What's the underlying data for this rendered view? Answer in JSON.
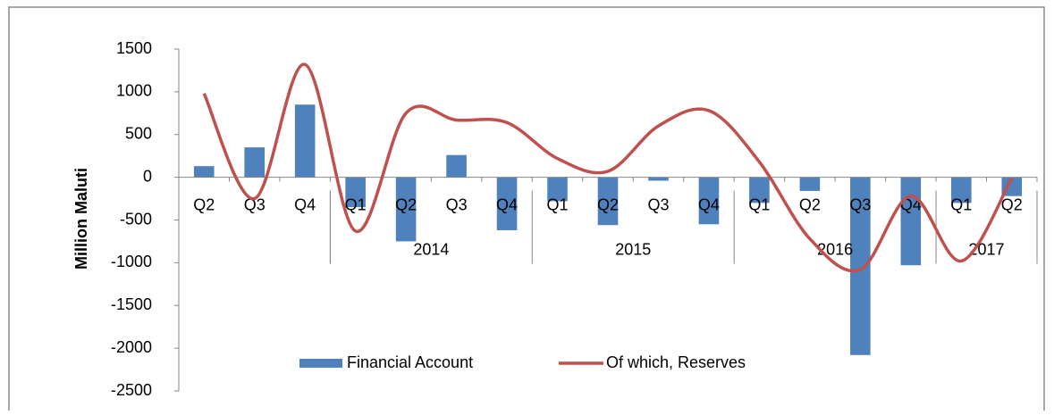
{
  "chart_data": {
    "type": "bar_line",
    "y_label": "Million Maluti",
    "categories": [
      "Q2",
      "Q3",
      "Q4",
      "Q1",
      "Q2",
      "Q3",
      "Q4",
      "Q1",
      "Q2",
      "Q3",
      "Q4",
      "Q1",
      "Q2",
      "Q3",
      "Q4",
      "Q1",
      "Q2"
    ],
    "category_years": [
      null,
      null,
      null,
      "2014",
      "2014",
      "2014",
      "2014",
      "2015",
      "2015",
      "2015",
      "2015",
      "2016",
      "2016",
      "2016",
      "2016",
      "2017",
      "2017"
    ],
    "series": [
      {
        "name": "Financial Account",
        "type": "bar",
        "color": "#4f81bd",
        "values": [
          130,
          350,
          850,
          -350,
          -750,
          260,
          -620,
          -280,
          -560,
          -40,
          -550,
          -300,
          -160,
          -2080,
          -1030,
          -300,
          -220
        ]
      },
      {
        "name": "Of which, Reserves",
        "type": "line",
        "color": "#c0504d",
        "smooth": true,
        "values": [
          980,
          -250,
          1320,
          -630,
          750,
          670,
          640,
          220,
          70,
          600,
          780,
          180,
          -720,
          -1080,
          -220,
          -980,
          -10
        ]
      }
    ],
    "ylim": [
      -2500,
      1500
    ],
    "yticks": [
      -2500,
      -2000,
      -1500,
      -1000,
      -500,
      0,
      500,
      1000,
      1500
    ],
    "grid": false,
    "legend": "bottom"
  }
}
